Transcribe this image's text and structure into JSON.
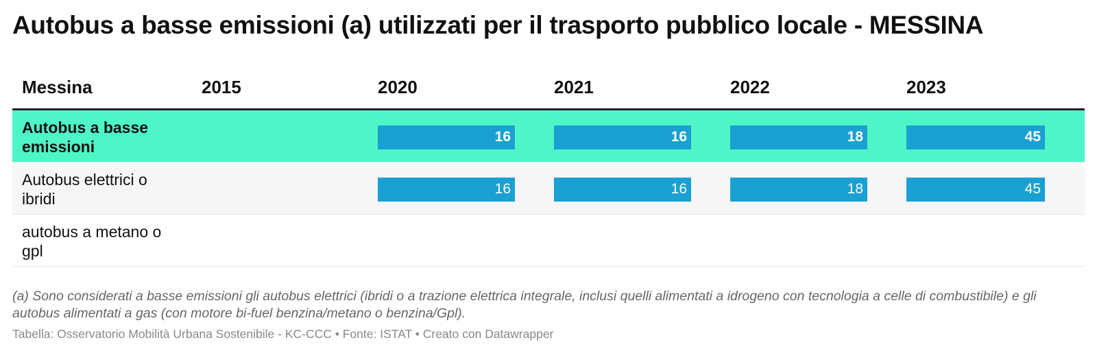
{
  "title": "Autobus a basse emissioni (a) utilizzati per il trasporto pubblico locale - MESSINA",
  "colors": {
    "highlight_row": "#4ef5c7",
    "bar": "#1aa0d2",
    "alt_row": "#f6f6f6"
  },
  "chart_data": {
    "type": "table",
    "columns": [
      "Messina",
      "2015",
      "2020",
      "2021",
      "2022",
      "2023"
    ],
    "rows": [
      {
        "label": "Autobus a basse emissioni",
        "highlight": true,
        "values": [
          null,
          16,
          16,
          18,
          45
        ]
      },
      {
        "label": "Autobus elettrici o ibridi",
        "highlight": false,
        "values": [
          null,
          16,
          16,
          18,
          45
        ]
      },
      {
        "label": "autobus a metano o gpl",
        "highlight": false,
        "values": [
          null,
          null,
          null,
          null,
          null
        ]
      }
    ],
    "bar_max": 45
  },
  "note": "(a) Sono considerati a basse emissioni gli autobus elettrici (ibridi o a trazione elettrica integrale, inclusi quelli alimentati a idrogeno con tecnologia a celle di combustibile) e gli autobus alimentati a gas (con motore bi-fuel benzina/metano o benzina/Gpl).",
  "footer": "Tabella: Osservatorio Mobilità Urbana Sostenibile - KC-CCC • Fonte: ISTAT • Creato con Datawrapper"
}
